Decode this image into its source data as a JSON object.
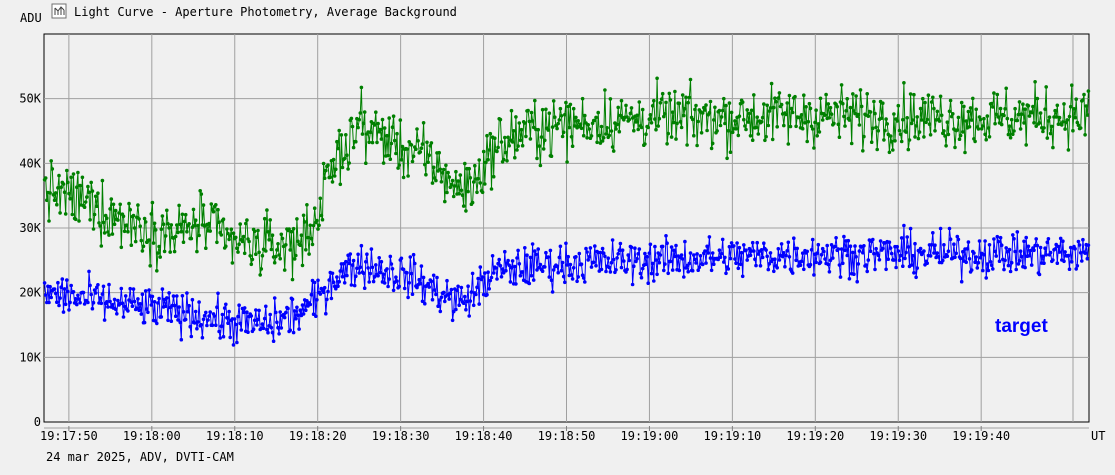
{
  "chart_data": {
    "type": "line",
    "title": "Light Curve - Aperture Photometry, Average Background",
    "ylabel": "ADU",
    "xlabel": "UT",
    "footer": "24 mar 2025, ADV, DVTI-CAM",
    "ylim": [
      0,
      60000
    ],
    "xlim": [
      "19:17:47",
      "19:19:53"
    ],
    "y_ticks": [
      {
        "value": 0,
        "label": "0"
      },
      {
        "value": 10000,
        "label": "10K"
      },
      {
        "value": 20000,
        "label": "20K"
      },
      {
        "value": 30000,
        "label": "30K"
      },
      {
        "value": 40000,
        "label": "40K"
      },
      {
        "value": 50000,
        "label": "50K"
      }
    ],
    "x_ticks": [
      {
        "value": "19:17:50",
        "label": "19:17:50"
      },
      {
        "value": "19:18:00",
        "label": "19:18:00"
      },
      {
        "value": "19:18:10",
        "label": "19:18:10"
      },
      {
        "value": "19:18:20",
        "label": "19:18:20"
      },
      {
        "value": "19:18:30",
        "label": "19:18:30"
      },
      {
        "value": "19:18:40",
        "label": "19:18:40"
      },
      {
        "value": "19:18:50",
        "label": "19:18:50"
      },
      {
        "value": "19:19:00",
        "label": "19:19:00"
      },
      {
        "value": "19:19:10",
        "label": "19:19:10"
      },
      {
        "value": "19:19:20",
        "label": "19:19:20"
      },
      {
        "value": "19:19:30",
        "label": "19:19:30"
      },
      {
        "value": "19:19:40",
        "label": "19:19:40"
      }
    ],
    "grid": true,
    "series": [
      {
        "color": "#008000",
        "noise": 4500,
        "trend": [
          [
            "19:17:47",
            36000
          ],
          [
            "19:17:52",
            34000
          ],
          [
            "19:17:57",
            31000
          ],
          [
            "19:18:00",
            30000
          ],
          [
            "19:18:03",
            29000
          ],
          [
            "19:18:06",
            31000
          ],
          [
            "19:18:09",
            28000
          ],
          [
            "19:18:14",
            27000
          ],
          [
            "19:18:18",
            28000
          ],
          [
            "19:18:20",
            32000
          ],
          [
            "19:18:22",
            40000
          ],
          [
            "19:18:25",
            46000
          ],
          [
            "19:18:28",
            44000
          ],
          [
            "19:18:31",
            42000
          ],
          [
            "19:18:34",
            40000
          ],
          [
            "19:18:37",
            36000
          ],
          [
            "19:18:39",
            37000
          ],
          [
            "19:18:41",
            42000
          ],
          [
            "19:18:45",
            45000
          ],
          [
            "19:18:50",
            46000
          ],
          [
            "19:19:00",
            47000
          ],
          [
            "19:19:10",
            47000
          ],
          [
            "19:19:20",
            47500
          ],
          [
            "19:19:30",
            47000
          ],
          [
            "19:19:40",
            47000
          ],
          [
            "19:19:53",
            47500
          ]
        ]
      },
      {
        "name": "target",
        "color": "#0000ff",
        "noise": 3200,
        "trend": [
          [
            "19:17:47",
            20000
          ],
          [
            "19:17:52",
            19000
          ],
          [
            "19:17:57",
            18000
          ],
          [
            "19:18:00",
            17500
          ],
          [
            "19:18:03",
            17000
          ],
          [
            "19:18:06",
            16500
          ],
          [
            "19:18:09",
            15500
          ],
          [
            "19:18:14",
            15000
          ],
          [
            "19:18:18",
            17000
          ],
          [
            "19:18:20",
            19000
          ],
          [
            "19:18:22",
            22500
          ],
          [
            "19:18:25",
            24500
          ],
          [
            "19:18:28",
            23500
          ],
          [
            "19:18:31",
            22500
          ],
          [
            "19:18:34",
            20500
          ],
          [
            "19:18:37",
            18500
          ],
          [
            "19:18:39",
            20000
          ],
          [
            "19:18:41",
            23000
          ],
          [
            "19:18:45",
            24000
          ],
          [
            "19:18:50",
            24500
          ],
          [
            "19:19:00",
            25000
          ],
          [
            "19:19:10",
            25500
          ],
          [
            "19:19:20",
            26000
          ],
          [
            "19:19:30",
            26000
          ],
          [
            "19:19:40",
            26000
          ],
          [
            "19:19:53",
            26000
          ]
        ]
      }
    ],
    "points_per_series": 940
  }
}
